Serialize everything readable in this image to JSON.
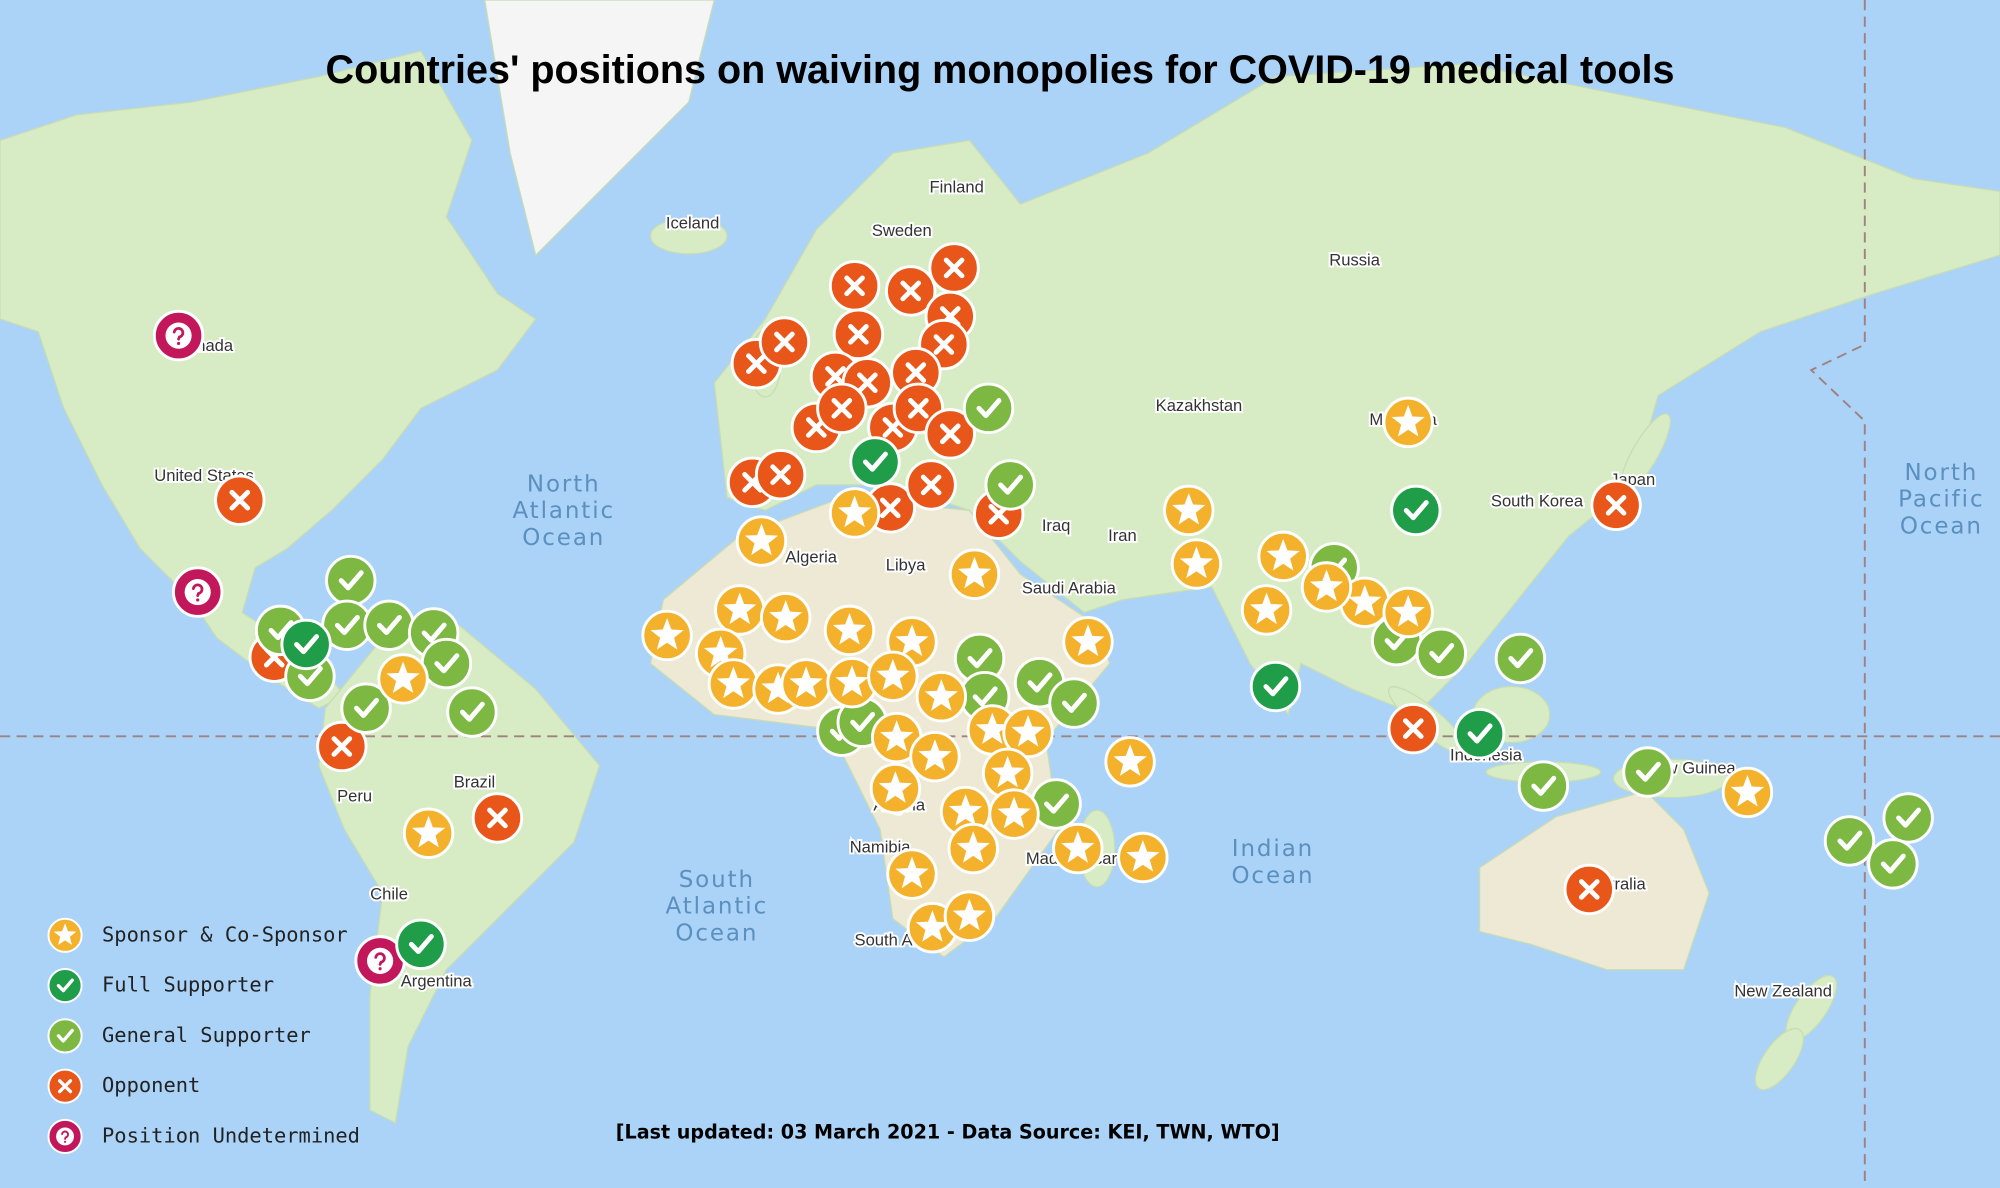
{
  "title": "Countries' positions on waiving monopolies for COVID-19 medical tools",
  "footer": "[Last updated: 03 March 2021 - Data Source: KEI, TWN, WTO]",
  "legend": [
    {
      "label": "Sponsor & Co-Sponsor",
      "color": "#f4b12b"
    },
    {
      "label": "Full Supporter",
      "color": "#1f9d48"
    },
    {
      "label": "General Supporter",
      "color": "#7cb842"
    },
    {
      "label": "Opponent",
      "color": "#e8561a"
    },
    {
      "label": "Position Undetermined",
      "color": "#c2185b"
    }
  ],
  "places": [
    "Finland",
    "Sweden",
    "Iceland",
    "Russia",
    "Kazakhstan",
    "Iran",
    "Iraq",
    "Saudi Arabia",
    "Algeria",
    "Libya",
    "United States",
    "Canada",
    "Brazil",
    "Peru",
    "Chile",
    "Argentina",
    "Angola",
    "Namibia",
    "South Africa",
    "Madagascar",
    "Indonesia",
    "Australia",
    "New Zealand",
    "New Guinea",
    "South Korea",
    "Japan",
    "Mongolia"
  ],
  "oceans": [
    [
      "North",
      "Atlantic",
      "Ocean"
    ],
    [
      "South",
      "Atlantic",
      "Ocean"
    ],
    [
      "Indian",
      "Ocean"
    ],
    [
      "North",
      "Pacific",
      "Ocean"
    ]
  ]
}
